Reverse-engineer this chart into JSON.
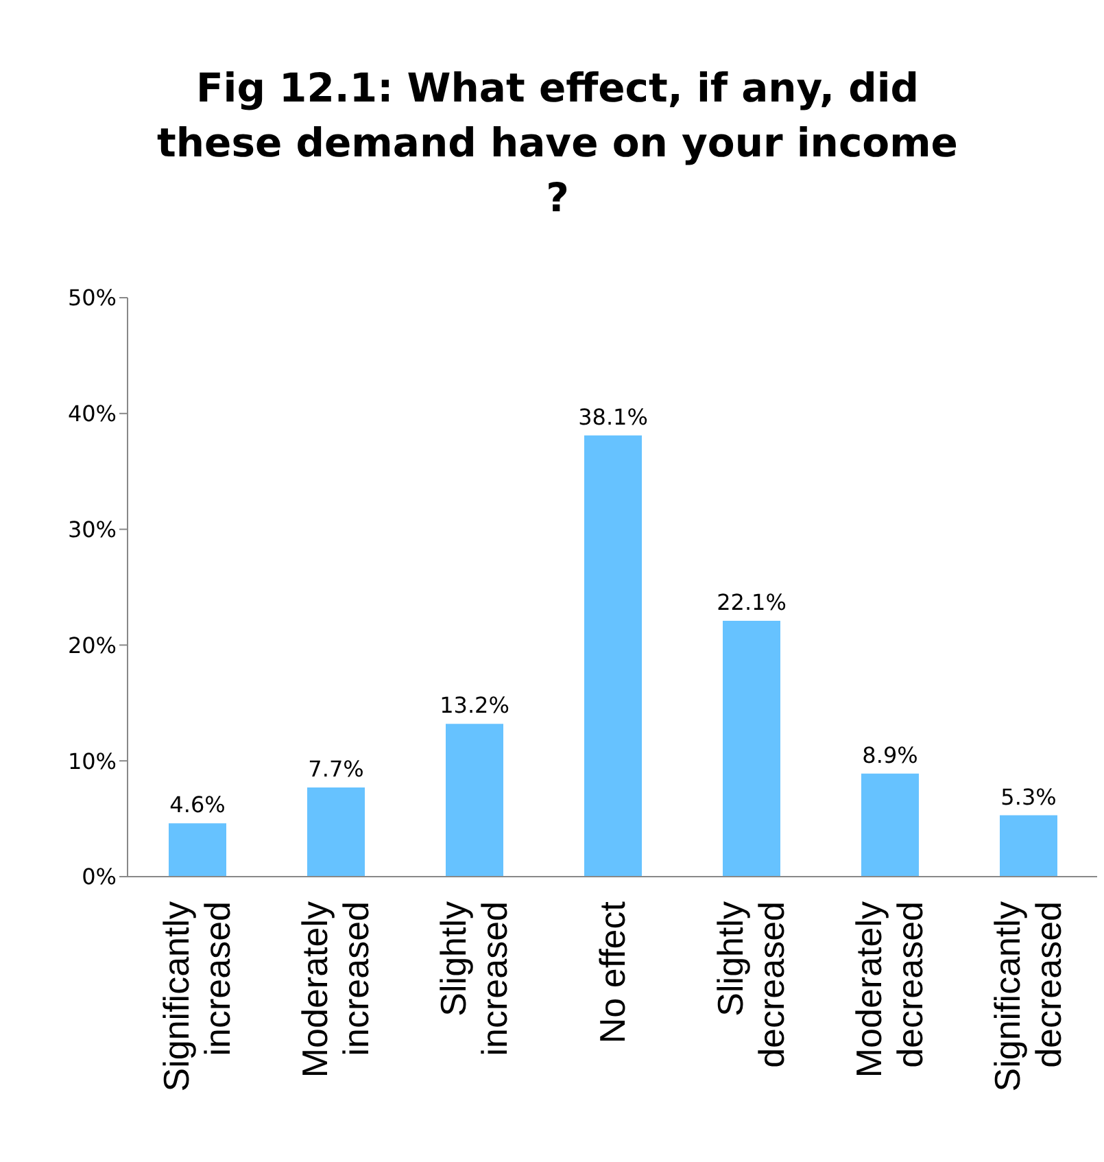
{
  "chart_data": {
    "type": "bar",
    "title": "Fig 12.1: What effect, if any, did these demand have on your income ?",
    "categories": [
      "Significantly increased",
      "Moderately increased",
      "Slightly increased",
      "No effect",
      "Slightly decreased",
      "Moderately decreased",
      "Significantly decreased"
    ],
    "values": [
      4.6,
      7.7,
      13.2,
      38.1,
      22.1,
      8.9,
      5.3
    ],
    "value_labels": [
      "4.6%",
      "7.7%",
      "13.2%",
      "38.1%",
      "22.1%",
      "8.9%",
      "5.3%"
    ],
    "color": "#66c2ff",
    "ylim": [
      0,
      50
    ],
    "yticks": [
      {
        "value": 0,
        "label": "0%"
      },
      {
        "value": 10,
        "label": "10%"
      },
      {
        "value": 20,
        "label": "20%"
      },
      {
        "value": 30,
        "label": "30%"
      },
      {
        "value": 40,
        "label": "40%"
      },
      {
        "value": 50,
        "label": "50%"
      }
    ],
    "grid": false,
    "legend": false
  }
}
